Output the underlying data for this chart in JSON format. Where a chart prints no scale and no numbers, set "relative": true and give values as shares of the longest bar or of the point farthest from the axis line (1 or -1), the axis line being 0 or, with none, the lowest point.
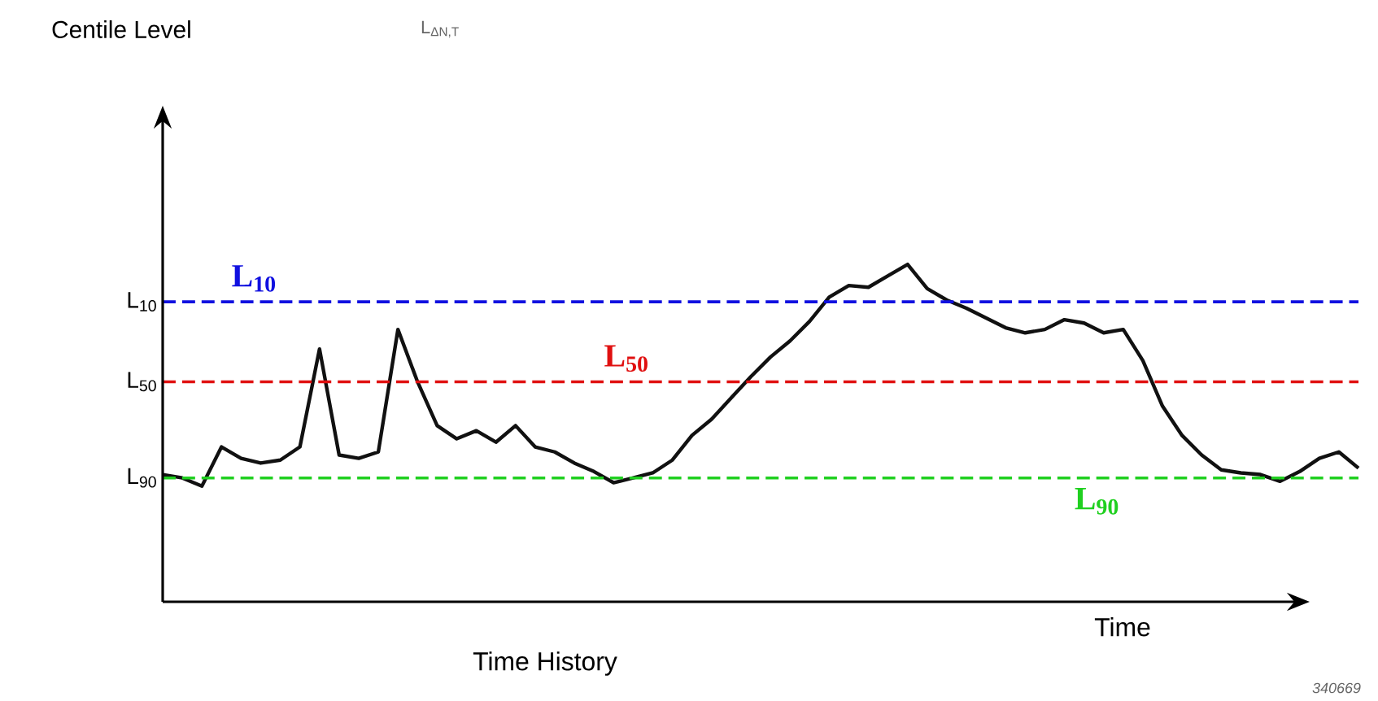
{
  "chart_data": {
    "type": "line",
    "relative": true,
    "title": "Time History",
    "xlabel": "Time",
    "annotations": [
      "Centile Level",
      "L$_{ΔN,T}$",
      "340669",
      "L$_{10}$",
      "L$_{50}$",
      "L$_{90}$"
    ],
    "line_style": "solid",
    "color": "#111111",
    "ref_lines": [
      {
        "axis": "y",
        "value": 0.889,
        "label": "L$_{10}$",
        "color": "#1010e0",
        "line_style": "dashed"
      },
      {
        "axis": "y",
        "value": 0.652,
        "label": "L$_{50}$",
        "color": "#e01010",
        "line_style": "dashed"
      },
      {
        "axis": "y",
        "value": 0.367,
        "label": "L$_{90}$",
        "color": "#20d020",
        "line_style": "dashed"
      }
    ],
    "categories": [
      null,
      null,
      null,
      null,
      null,
      null,
      null,
      null,
      null,
      null,
      null,
      null,
      null,
      null,
      null,
      null,
      null,
      null,
      null,
      null,
      null,
      null,
      null,
      null,
      null,
      null,
      null,
      null,
      null,
      null,
      null,
      null,
      null,
      null,
      null,
      null,
      null,
      null,
      null,
      null,
      null,
      null,
      null,
      null,
      null,
      null,
      null,
      null,
      null,
      null,
      null,
      null,
      null,
      null,
      null,
      null,
      null,
      null,
      null,
      null,
      null,
      null
    ],
    "values": [
      0.377,
      0.367,
      0.343,
      0.459,
      0.425,
      0.411,
      0.42,
      0.459,
      0.749,
      0.435,
      0.425,
      0.444,
      0.807,
      0.652,
      0.522,
      0.483,
      0.507,
      0.473,
      0.522,
      0.459,
      0.444,
      0.411,
      0.386,
      0.353,
      0.367,
      0.382,
      0.42,
      0.493,
      0.541,
      0.604,
      0.667,
      0.725,
      0.773,
      0.831,
      0.903,
      0.937,
      0.932,
      0.966,
      1.0,
      0.928,
      0.894,
      0.87,
      0.841,
      0.812,
      0.797,
      0.807,
      0.836,
      0.826,
      0.797,
      0.807,
      0.715,
      0.58,
      0.493,
      0.435,
      0.391,
      0.382,
      0.377,
      0.357,
      0.386,
      0.425,
      0.444,
      0.396
    ]
  }
}
